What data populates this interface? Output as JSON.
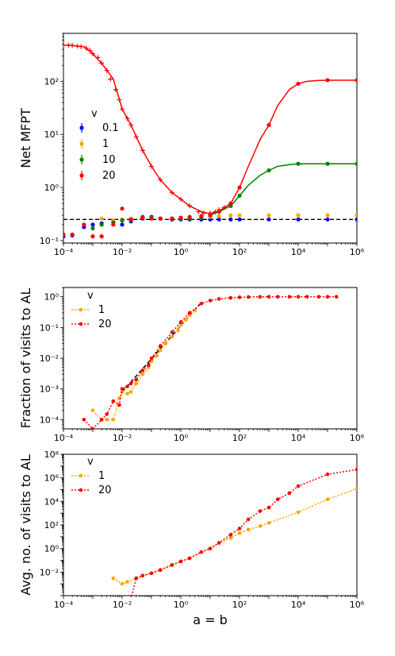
{
  "chart_data": [
    {
      "type": "scatter",
      "ylabel": "Net MFPT",
      "xlabel": "",
      "xscale": "log",
      "yscale": "log",
      "xlim": [
        0.0001,
        1000000
      ],
      "ylim": [
        0.09,
        800
      ],
      "x_tick_labels": [
        "10⁻⁴",
        "10⁻²",
        "10⁰",
        "10²",
        "10⁴",
        "10⁶"
      ],
      "y_tick_labels": [
        "10⁻¹",
        "10⁰",
        "10¹",
        "10²"
      ],
      "legend_title": "v",
      "legend_position": "center-left",
      "reference_line": {
        "y": 0.25,
        "style": "dashed",
        "color": "#000000"
      },
      "series": [
        {
          "name": "0.1",
          "color": "#0000ff",
          "marker": "circle",
          "x": [
            0.0001,
            0.0002,
            0.0005,
            0.001,
            0.002,
            0.005,
            0.01,
            0.02,
            0.05,
            0.1,
            0.2,
            0.5,
            1,
            2,
            5,
            10,
            20,
            50,
            100,
            1000,
            10000,
            100000,
            1000000
          ],
          "y": [
            0.12,
            0.125,
            0.18,
            0.2,
            0.21,
            0.22,
            0.2,
            0.23,
            0.26,
            0.28,
            0.26,
            0.25,
            0.25,
            0.25,
            0.25,
            0.25,
            0.25,
            0.25,
            0.25,
            0.25,
            0.25,
            0.25,
            0.25
          ]
        },
        {
          "name": "1",
          "color": "#ffa500",
          "marker": "circle",
          "x": [
            0.002,
            0.005,
            0.01,
            0.02,
            0.05,
            0.1,
            0.2,
            0.5,
            1,
            2,
            5,
            10,
            20,
            50,
            100,
            1000,
            10000,
            100000,
            1000000
          ],
          "y": [
            0.26,
            0.24,
            0.25,
            0.26,
            0.27,
            0.27,
            0.26,
            0.26,
            0.26,
            0.26,
            0.27,
            0.28,
            0.29,
            0.3,
            0.3,
            0.3,
            0.3,
            0.3,
            0.3
          ]
        },
        {
          "name": "10",
          "color": "#008000",
          "marker": "circle",
          "x": [
            0.001,
            0.002,
            0.005,
            0.01,
            0.02,
            0.05,
            0.1,
            0.2,
            0.5,
            1,
            2,
            5,
            10,
            20,
            50,
            100,
            1000,
            10000,
            100000,
            1000000
          ],
          "y": [
            0.17,
            0.2,
            0.22,
            0.24,
            0.24,
            0.28,
            0.27,
            0.26,
            0.26,
            0.26,
            0.26,
            0.27,
            0.3,
            0.35,
            0.45,
            0.7,
            2.1,
            2.8,
            2.8,
            2.8
          ]
        },
        {
          "name": "20",
          "color": "#ff0000",
          "marker": "circle",
          "x": [
            0.0001,
            0.0002,
            0.0005,
            0.001,
            0.002,
            0.005,
            0.01,
            0.02,
            0.05,
            0.1,
            0.2,
            0.5,
            1,
            2,
            5,
            10,
            20,
            50,
            100,
            1000,
            10000,
            100000,
            1000000
          ],
          "y": [
            0.13,
            0.13,
            0.2,
            0.12,
            0.12,
            0.2,
            0.4,
            0.25,
            0.27,
            0.26,
            0.26,
            0.26,
            0.27,
            0.28,
            0.29,
            0.3,
            0.35,
            0.5,
            1.0,
            15,
            90,
            105,
            105
          ]
        },
        {
          "name": "",
          "color": "#ff0000",
          "marker": "plus",
          "x": [
            0.0001,
            0.00015,
            0.0002,
            0.0003,
            0.0004,
            0.0006,
            0.0008,
            0.001,
            0.0015,
            0.002,
            0.003,
            0.004,
            0.006,
            0.008,
            0.01,
            0.015,
            0.02,
            0.03,
            0.05,
            0.1,
            0.2,
            0.5,
            1,
            2,
            4,
            6,
            10,
            15,
            20,
            30
          ],
          "y": [
            480,
            480,
            475,
            460,
            450,
            420,
            380,
            330,
            280,
            220,
            160,
            110,
            70,
            45,
            30,
            20,
            15,
            9,
            5,
            2.5,
            1.4,
            0.8,
            0.6,
            0.45,
            0.35,
            0.33,
            0.33,
            0.35,
            0.38,
            0.42
          ]
        }
      ],
      "curves": [
        {
          "color": "#ff0000",
          "x": [
            0.0001,
            0.0002,
            0.0005,
            0.001,
            0.002,
            0.005,
            0.01,
            0.02,
            0.05,
            0.1,
            0.2,
            0.5,
            1,
            2,
            5,
            10,
            20,
            50,
            100,
            200,
            500,
            1000,
            2000,
            5000,
            10000,
            20000,
            50000,
            100000,
            1000000
          ],
          "y": [
            480,
            470,
            450,
            330,
            220,
            110,
            30,
            15,
            5,
            2.5,
            1.4,
            0.8,
            0.6,
            0.45,
            0.35,
            0.32,
            0.36,
            0.5,
            1.0,
            2.5,
            8,
            15,
            35,
            70,
            90,
            100,
            104,
            105,
            105
          ]
        },
        {
          "color": "#008000",
          "x": [
            10,
            20,
            50,
            100,
            200,
            500,
            1000,
            2000,
            5000,
            10000,
            100000,
            1000000
          ],
          "y": [
            0.3,
            0.35,
            0.45,
            0.7,
            1.1,
            1.7,
            2.1,
            2.5,
            2.7,
            2.8,
            2.8,
            2.8
          ]
        }
      ]
    },
    {
      "type": "line",
      "ylabel": "Fraction of visits to AL",
      "xlabel": "",
      "xscale": "log",
      "yscale": "log",
      "xlim": [
        0.0001,
        1000000
      ],
      "ylim": [
        5e-05,
        2
      ],
      "x_tick_labels": [
        "10⁻⁴",
        "10⁻²",
        "10⁰",
        "10²",
        "10⁴",
        "10⁶"
      ],
      "y_tick_labels": [
        "10⁻⁴",
        "10⁻³",
        "10⁻²",
        "10⁻¹",
        "10⁰"
      ],
      "legend_title": "v",
      "legend_position": "top-left",
      "reference_line": {
        "x": [
          0.01,
          5
        ],
        "y": [
          0.0008,
          0.65
        ],
        "style": "dashed",
        "color": "#000000"
      },
      "series": [
        {
          "name": "1",
          "color": "#ffa500",
          "style": "dotted",
          "x": [
            0.001,
            0.002,
            0.003,
            0.005,
            0.008,
            0.01,
            0.015,
            0.02,
            0.03,
            0.05,
            0.08,
            0.1,
            0.15,
            0.2,
            0.3,
            0.5,
            0.8,
            1,
            1.5,
            2,
            3
          ],
          "y": [
            0.0002,
            0.0001,
            0.0001,
            0.0001,
            0.0005,
            0.0008,
            0.0007,
            0.0008,
            0.0015,
            0.003,
            0.005,
            0.008,
            0.012,
            0.018,
            0.03,
            0.05,
            0.08,
            0.12,
            0.18,
            0.25,
            0.35
          ]
        },
        {
          "name": "20",
          "color": "#ff0000",
          "style": "dotted",
          "x": [
            0.0005,
            0.001,
            0.002,
            0.003,
            0.005,
            0.008,
            0.01,
            0.015,
            0.02,
            0.03,
            0.05,
            0.08,
            0.1,
            0.2,
            0.5,
            1,
            2,
            5,
            10,
            20,
            50,
            100,
            200,
            500,
            1000,
            2000,
            5000,
            10000,
            20000,
            50000,
            100000,
            200000
          ],
          "y": [
            0.0001,
            5e-05,
            0.0001,
            0.00015,
            0.0004,
            0.0003,
            0.001,
            0.0012,
            0.0015,
            0.002,
            0.004,
            0.006,
            0.01,
            0.025,
            0.07,
            0.15,
            0.3,
            0.6,
            0.75,
            0.85,
            0.92,
            0.96,
            0.98,
            0.99,
            1.0,
            1.0,
            1.0,
            1.0,
            1.0,
            1.0,
            1.0,
            1.0
          ]
        }
      ]
    },
    {
      "type": "line",
      "ylabel": "Avg. no. of visits to AL",
      "xlabel": "a = b",
      "xscale": "log",
      "yscale": "log",
      "xlim": [
        0.0001,
        1000000
      ],
      "ylim": [
        0.0001,
        100000000
      ],
      "x_tick_labels": [
        "10⁻⁴",
        "10⁻²",
        "10⁰",
        "10²",
        "10⁴",
        "10⁶"
      ],
      "y_tick_labels": [
        "10⁻²",
        "10⁰",
        "10²",
        "10⁴",
        "10⁶",
        "10⁸"
      ],
      "legend_title": "v",
      "legend_position": "top-left",
      "series": [
        {
          "name": "1",
          "color": "#ffa500",
          "style": "dotted",
          "x": [
            0.005,
            0.01,
            0.015,
            0.03,
            0.05,
            0.1,
            0.2,
            0.5,
            1,
            2,
            5,
            10,
            20,
            50,
            100,
            200,
            500,
            1000,
            10000,
            100000,
            1000000
          ],
          "y": [
            0.003,
            0.001,
            0.0015,
            0.003,
            0.005,
            0.008,
            0.015,
            0.04,
            0.08,
            0.15,
            0.5,
            1,
            3,
            8,
            20,
            40,
            80,
            150,
            1200,
            15000,
            120000
          ]
        },
        {
          "name": "20",
          "color": "#ff0000",
          "style": "dotted",
          "x": [
            0.02,
            0.03,
            0.05,
            0.1,
            0.2,
            0.5,
            1,
            2,
            5,
            10,
            20,
            50,
            100,
            200,
            500,
            1000,
            2000,
            5000,
            10000,
            100000,
            1000000
          ],
          "y": [
            5e-05,
            0.003,
            0.005,
            0.008,
            0.015,
            0.04,
            0.08,
            0.15,
            0.5,
            1,
            3,
            15,
            50,
            300,
            1500,
            3000,
            15000,
            50000,
            200000,
            2000000,
            5000000
          ]
        }
      ]
    }
  ]
}
